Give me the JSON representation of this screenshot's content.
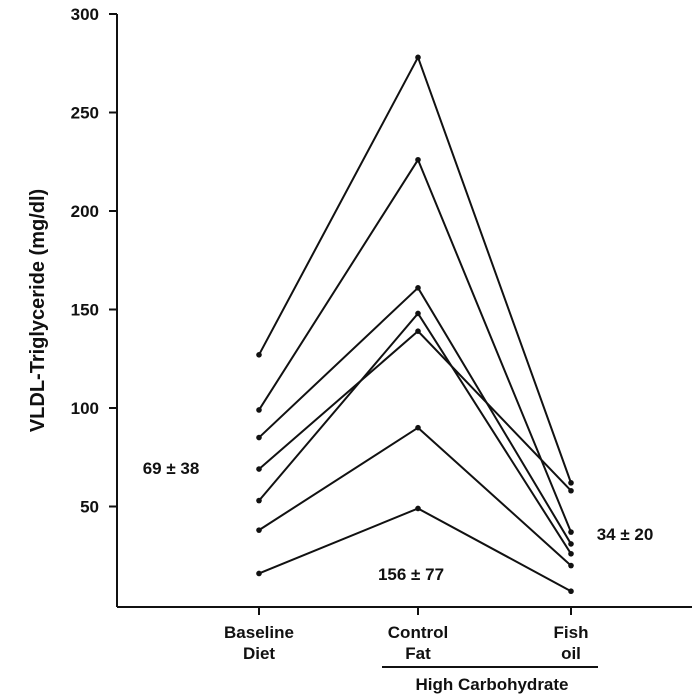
{
  "chart_data": {
    "type": "line",
    "ylabel": "VLDL-Triglyceride (mg/dl)",
    "xlabel": "",
    "ylim": [
      0,
      300
    ],
    "yticks": [
      50,
      100,
      150,
      200,
      250,
      300
    ],
    "categories": [
      {
        "line1": "Baseline",
        "line2": "Diet"
      },
      {
        "line1": "Control",
        "line2": "Fat"
      },
      {
        "line1": "Fish",
        "line2": "oil"
      }
    ],
    "group_label": "High Carbohydrate",
    "series": [
      {
        "values": [
          16,
          49,
          7
        ]
      },
      {
        "values": [
          38,
          90,
          20
        ]
      },
      {
        "values": [
          53,
          148,
          26
        ]
      },
      {
        "values": [
          69,
          139,
          58
        ]
      },
      {
        "values": [
          85,
          161,
          31
        ]
      },
      {
        "values": [
          99,
          226,
          37
        ]
      },
      {
        "values": [
          127,
          278,
          62
        ]
      }
    ],
    "annotations": {
      "baseline_mean": "69 ± 38",
      "control_mean": "156 ± 77",
      "fish_mean": "34 ± 20"
    }
  }
}
